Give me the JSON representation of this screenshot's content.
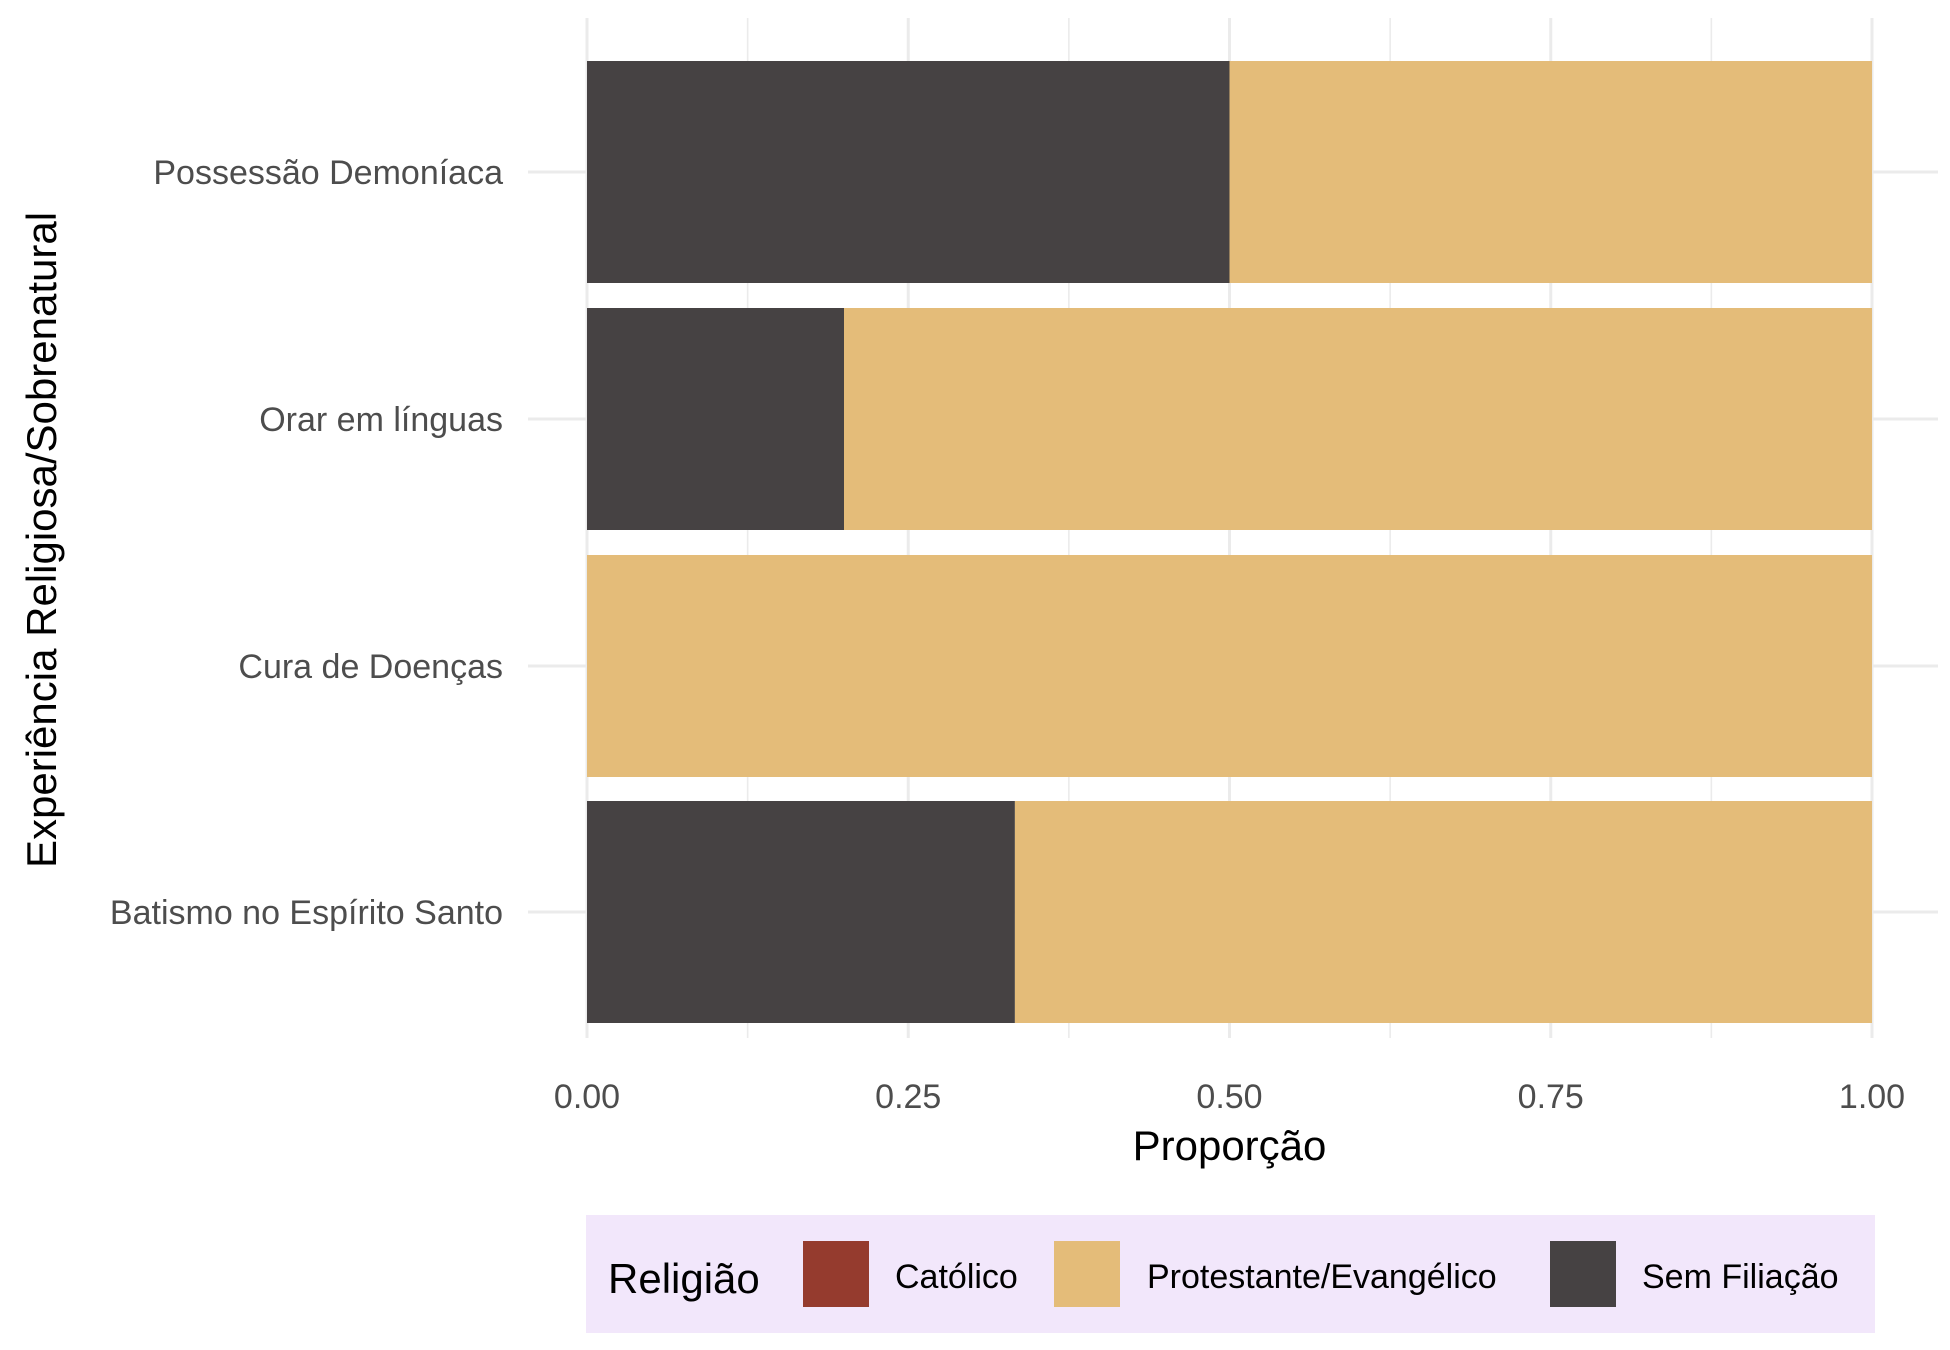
{
  "chart_data": {
    "type": "bar",
    "orientation": "horizontal",
    "stacked": "proportion",
    "xlabel": "Proporção",
    "ylabel": "Experiência Religiosa/Sobrenatural",
    "xlim": [
      0,
      1
    ],
    "x_ticks": [
      "0.00",
      "0.25",
      "0.50",
      "0.75",
      "1.00"
    ],
    "categories": [
      "Possessão Demoníaca",
      "Orar em línguas",
      "Cura de Doenças",
      "Batismo no Espírito Santo"
    ],
    "series": [
      {
        "name": "Sem Filiação",
        "color": "#464243",
        "values": [
          0.5,
          0.2,
          0.0,
          0.333
        ]
      },
      {
        "name": "Protestante/Evangélico",
        "color": "#e4bc79",
        "values": [
          0.5,
          0.8,
          1.0,
          0.667
        ]
      },
      {
        "name": "Católico",
        "color": "#953b2e",
        "values": [
          0,
          0,
          0,
          0
        ]
      }
    ],
    "legend": {
      "title": "Religião",
      "position": "bottom",
      "background": "#f2e7fb",
      "items": [
        {
          "label": "Católico",
          "color": "#953b2e"
        },
        {
          "label": "Protestante/Evangélico",
          "color": "#e4bc79"
        },
        {
          "label": "Sem Filiação",
          "color": "#464243"
        }
      ]
    },
    "grid": true,
    "grid_color": "#ebebeb"
  }
}
